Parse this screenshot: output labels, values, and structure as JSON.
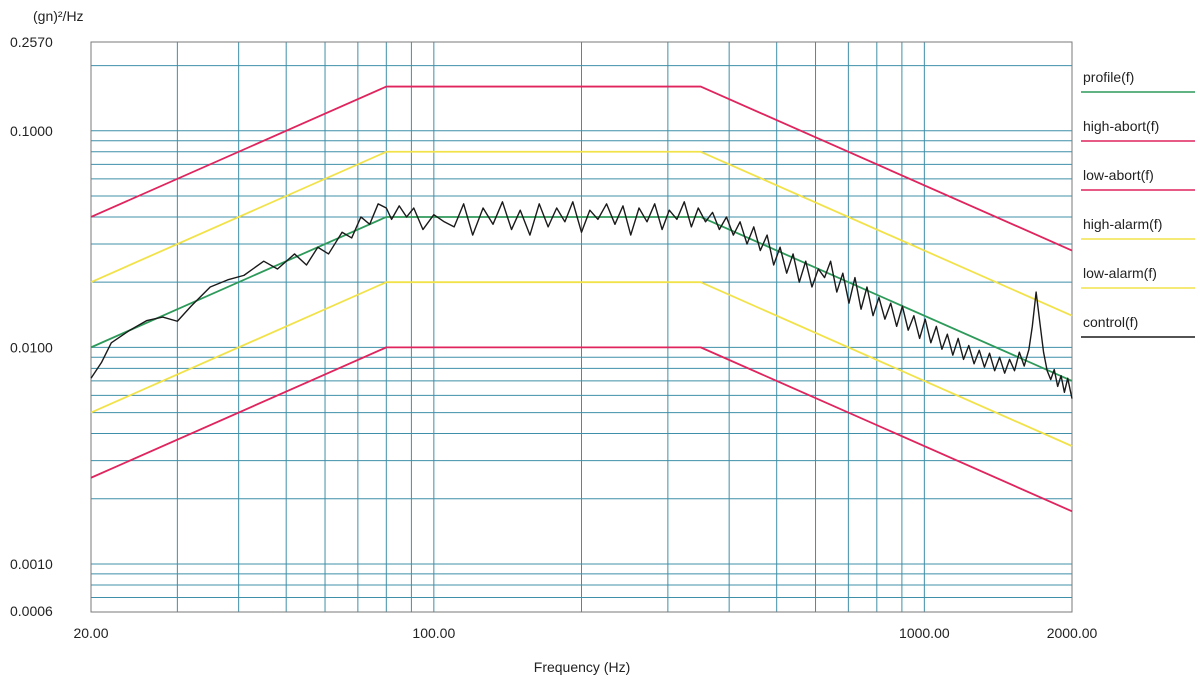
{
  "chart_data": {
    "type": "line",
    "title": "",
    "xlabel": "Frequency (Hz)",
    "ylabel": "(gn)²/Hz",
    "x_scale": "log",
    "y_scale": "log",
    "xlim": [
      20,
      2000
    ],
    "ylim": [
      0.0006,
      0.257
    ],
    "grid": true,
    "legend_position": "right",
    "x_ticks": [
      {
        "value": 20,
        "label": "20.00"
      },
      {
        "value": 100,
        "label": "100.00"
      },
      {
        "value": 1000,
        "label": "1000.00"
      },
      {
        "value": 2000,
        "label": "2000.00"
      }
    ],
    "y_ticks": [
      {
        "value": 0.257,
        "label": "0.2570"
      },
      {
        "value": 0.1,
        "label": "0.1000"
      },
      {
        "value": 0.01,
        "label": "0.0100"
      },
      {
        "value": 0.001,
        "label": "0.0010"
      },
      {
        "value": 0.0006,
        "label": "0.0006"
      }
    ],
    "series": [
      {
        "name": "profile(f)",
        "color": "#2e9a5a",
        "x": [
          20,
          80,
          350,
          2000
        ],
        "y": [
          0.01,
          0.04,
          0.04,
          0.007
        ]
      },
      {
        "name": "high-abort(f)",
        "color": "#e0245e",
        "x": [
          20,
          80,
          350,
          2000
        ],
        "y": [
          0.04,
          0.16,
          0.16,
          0.028
        ]
      },
      {
        "name": "low-abort(f)",
        "color": "#e0245e",
        "x": [
          20,
          80,
          350,
          2000
        ],
        "y": [
          0.0025,
          0.01,
          0.01,
          0.00175
        ]
      },
      {
        "name": "high-alarm(f)",
        "color": "#f2e24a",
        "x": [
          20,
          80,
          350,
          2000
        ],
        "y": [
          0.02,
          0.08,
          0.08,
          0.014
        ]
      },
      {
        "name": "low-alarm(f)",
        "color": "#f2e24a",
        "x": [
          20,
          80,
          350,
          2000
        ],
        "y": [
          0.005,
          0.02,
          0.02,
          0.0035
        ]
      },
      {
        "name": "control(f)",
        "color": "#1a1a1a",
        "x": [
          20,
          21,
          22,
          24,
          26,
          28,
          30,
          32,
          35,
          38,
          41,
          45,
          48,
          52,
          55,
          58,
          61,
          65,
          68,
          71,
          74,
          77,
          80,
          82,
          85,
          88,
          91,
          95,
          100,
          105,
          110,
          115,
          120,
          126,
          132,
          138,
          144,
          150,
          157,
          164,
          171,
          178,
          185,
          192,
          200,
          208,
          216,
          225,
          234,
          243,
          252,
          262,
          272,
          282,
          292,
          302,
          313,
          324,
          335,
          346,
          358,
          370,
          382,
          395,
          408,
          421,
          435,
          449,
          463,
          478,
          493,
          508,
          524,
          540,
          556,
          573,
          590,
          608,
          626,
          644,
          663,
          682,
          702,
          722,
          743,
          764,
          786,
          808,
          831,
          854,
          878,
          902,
          927,
          952,
          978,
          1004,
          1031,
          1058,
          1086,
          1114,
          1143,
          1172,
          1202,
          1232,
          1263,
          1294,
          1326,
          1358,
          1391,
          1424,
          1458,
          1492,
          1527,
          1562,
          1598,
          1634,
          1660,
          1690,
          1720,
          1750,
          1780,
          1810,
          1840,
          1870,
          1900,
          1930,
          1960,
          2000
        ],
        "y": [
          0.0072,
          0.0085,
          0.0105,
          0.012,
          0.0133,
          0.0138,
          0.0132,
          0.0155,
          0.019,
          0.0205,
          0.0215,
          0.025,
          0.023,
          0.027,
          0.024,
          0.029,
          0.027,
          0.034,
          0.032,
          0.04,
          0.037,
          0.046,
          0.044,
          0.039,
          0.045,
          0.04,
          0.044,
          0.035,
          0.041,
          0.038,
          0.036,
          0.046,
          0.033,
          0.044,
          0.037,
          0.047,
          0.035,
          0.043,
          0.033,
          0.046,
          0.036,
          0.044,
          0.038,
          0.047,
          0.034,
          0.043,
          0.039,
          0.046,
          0.037,
          0.045,
          0.033,
          0.044,
          0.038,
          0.046,
          0.035,
          0.043,
          0.039,
          0.047,
          0.036,
          0.044,
          0.038,
          0.042,
          0.035,
          0.04,
          0.033,
          0.038,
          0.03,
          0.036,
          0.028,
          0.033,
          0.024,
          0.029,
          0.022,
          0.027,
          0.02,
          0.025,
          0.019,
          0.023,
          0.021,
          0.025,
          0.018,
          0.022,
          0.016,
          0.021,
          0.015,
          0.019,
          0.014,
          0.017,
          0.0135,
          0.016,
          0.0125,
          0.0155,
          0.012,
          0.014,
          0.011,
          0.0135,
          0.0105,
          0.0125,
          0.0098,
          0.0115,
          0.0092,
          0.011,
          0.0088,
          0.0102,
          0.0084,
          0.0097,
          0.0081,
          0.0094,
          0.0078,
          0.009,
          0.0076,
          0.0088,
          0.0078,
          0.0095,
          0.0082,
          0.0098,
          0.0125,
          0.018,
          0.013,
          0.0095,
          0.0078,
          0.0071,
          0.0079,
          0.0066,
          0.0074,
          0.0062,
          0.0072,
          0.0058
        ]
      }
    ]
  }
}
